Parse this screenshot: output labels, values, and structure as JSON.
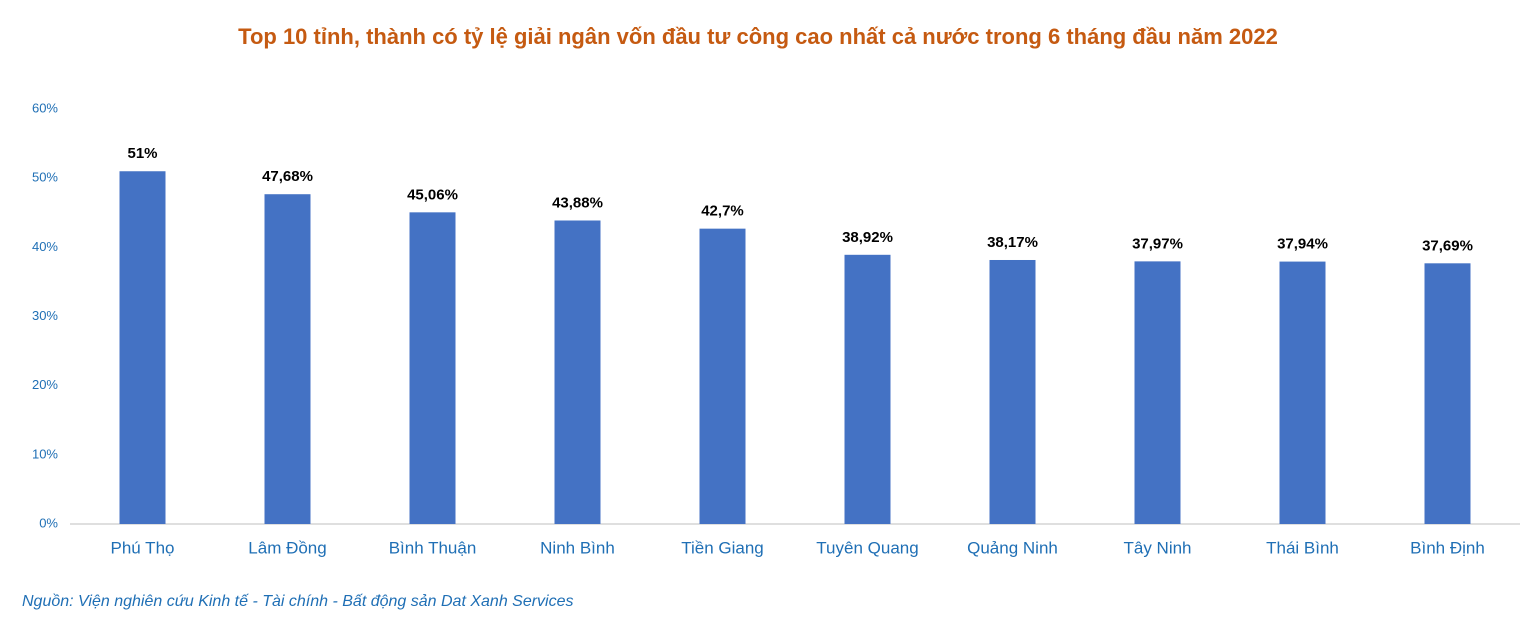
{
  "chart_data": {
    "type": "bar",
    "title": "Top 10 tỉnh, thành có tỷ lệ giải ngân vốn đầu tư công cao nhất cả nước trong 6 tháng đầu năm 2022",
    "source": "Nguồn: Viện nghiên cứu Kinh tế - Tài chính - Bất động sản Dat Xanh Services",
    "categories": [
      "Phú Thọ",
      "Lâm Đồng",
      "Bình Thuận",
      "Ninh Bình",
      "Tiền Giang",
      "Tuyên Quang",
      "Quảng Ninh",
      "Tây Ninh",
      "Thái Bình",
      "Bình Định"
    ],
    "values": [
      51,
      47.68,
      45.06,
      43.88,
      42.7,
      38.92,
      38.17,
      37.97,
      37.94,
      37.69
    ],
    "value_labels": [
      "51%",
      "47,68%",
      "45,06%",
      "43,88%",
      "42,7%",
      "38,92%",
      "38,17%",
      "37,97%",
      "37,94%",
      "37,69%"
    ],
    "color": "#4472c4",
    "ylim": [
      0,
      60
    ],
    "yticks": [
      {
        "value": 0,
        "label": "0%"
      },
      {
        "value": 10,
        "label": "10%"
      },
      {
        "value": 20,
        "label": "20%"
      },
      {
        "value": 30,
        "label": "30%"
      },
      {
        "value": 40,
        "label": "40%"
      },
      {
        "value": 50,
        "label": "50%"
      },
      {
        "value": 60,
        "label": "60%"
      }
    ],
    "grid": false
  }
}
